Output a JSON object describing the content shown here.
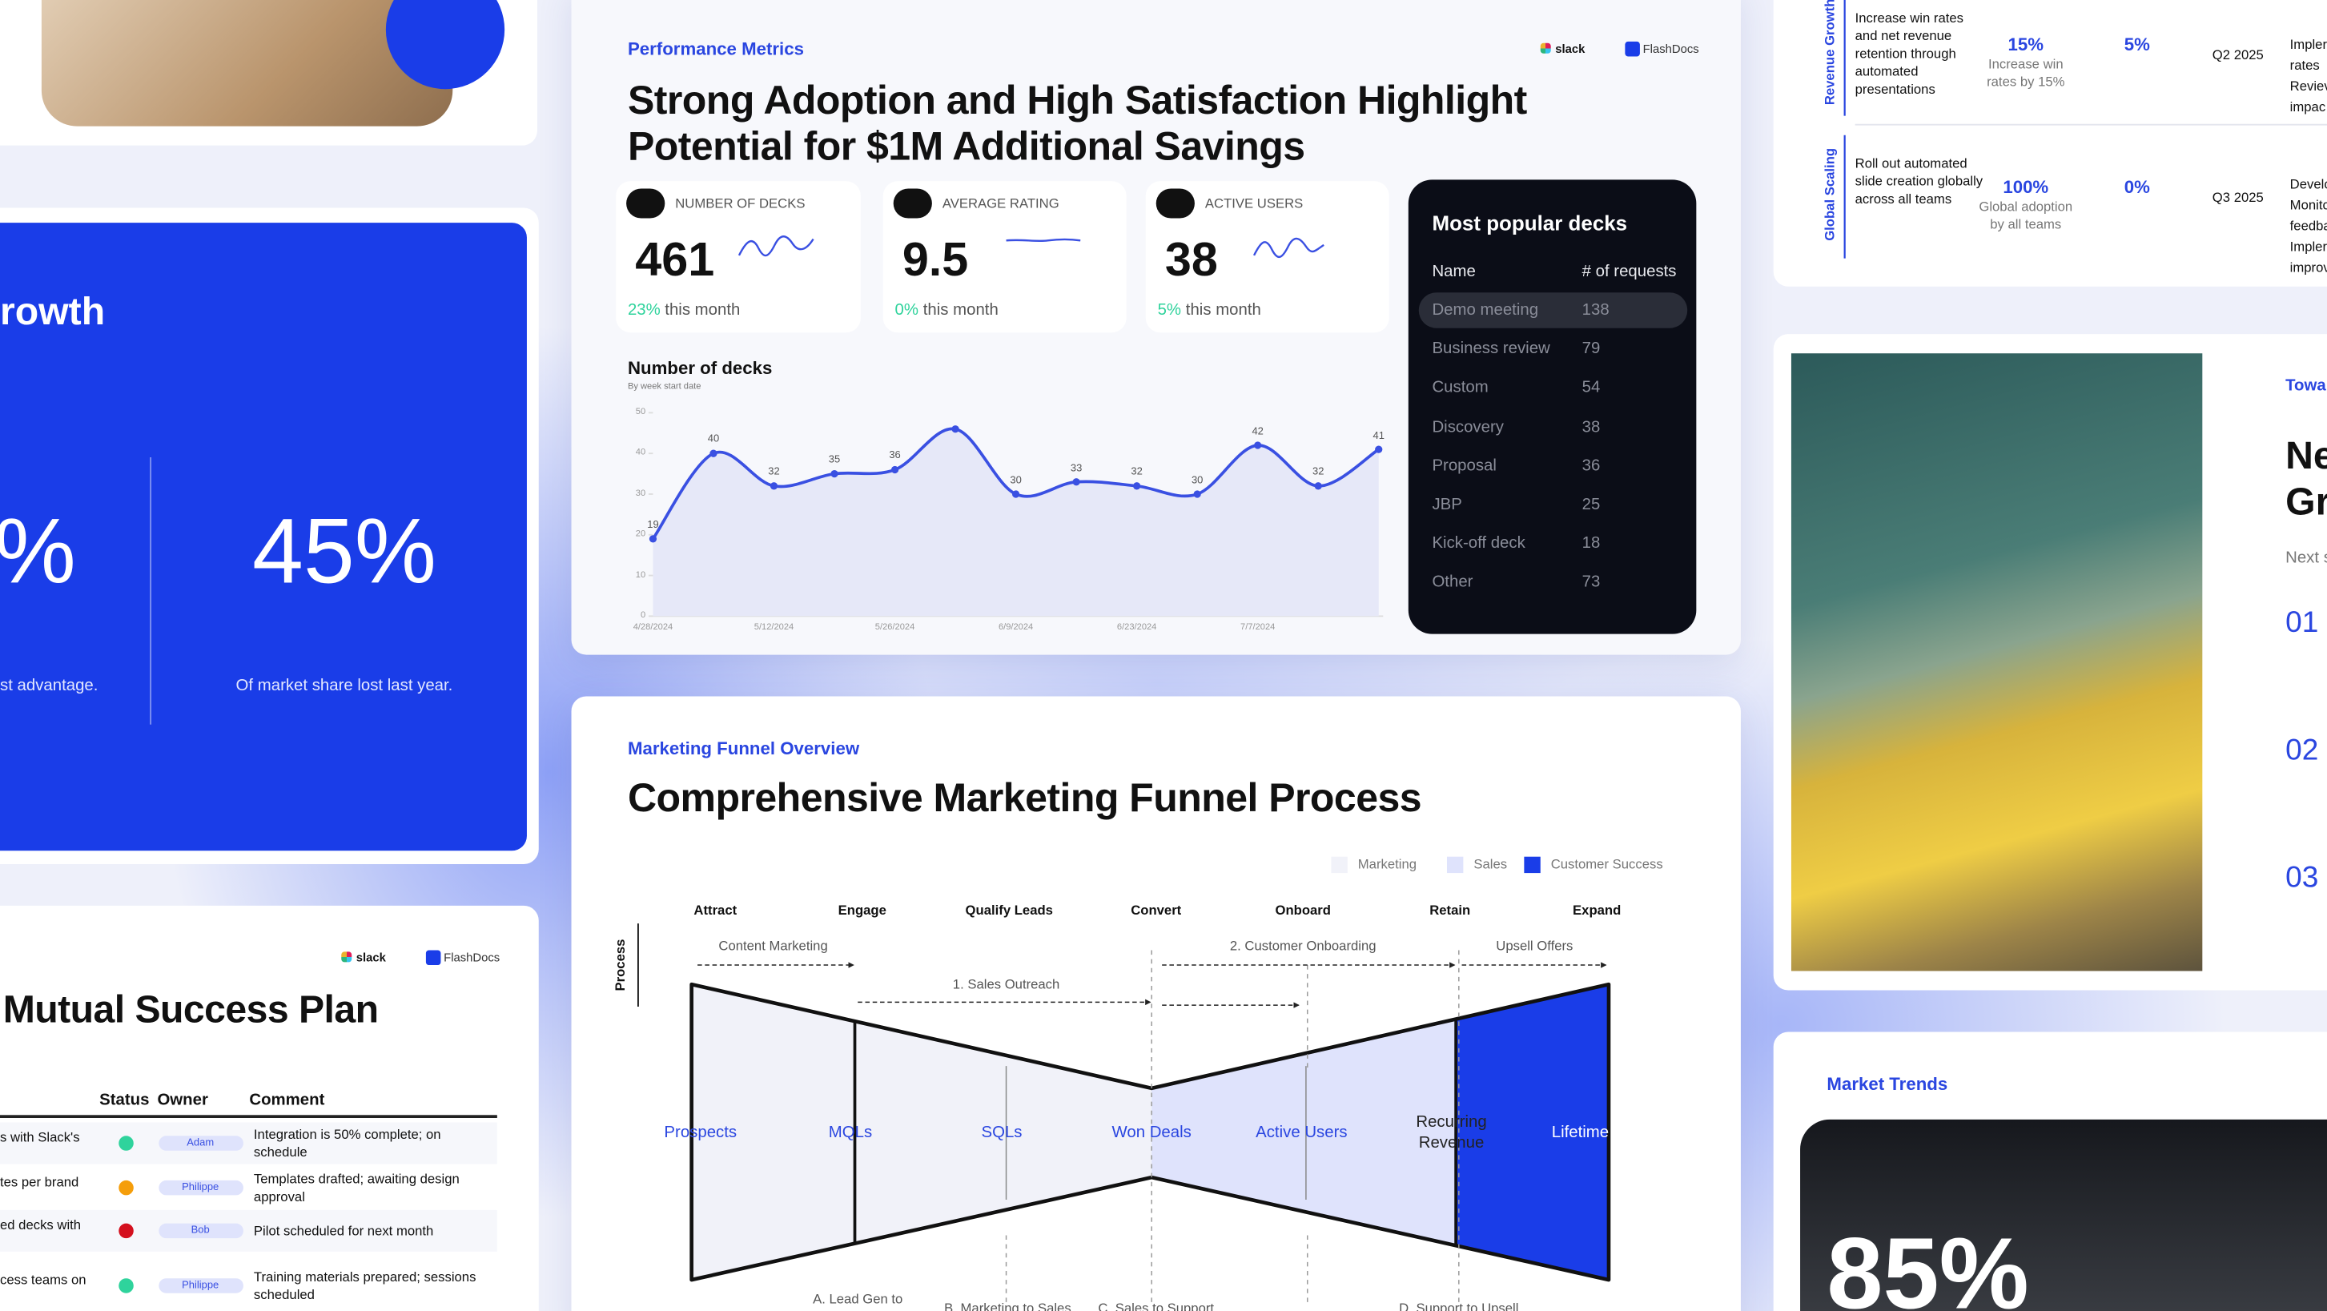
{
  "growth_card": {
    "title": "rowth",
    "stat_left": "%",
    "stat_right": "45%",
    "caption_left": "st advantage.",
    "caption_right": "Of market share lost last year."
  },
  "success_plan": {
    "logos": [
      "slack",
      "FlashDocs"
    ],
    "title": "Mutual Success Plan",
    "columns": [
      "Status",
      "Owner",
      "Comment"
    ],
    "rows": [
      {
        "task": "s with Slack's",
        "status_color": "#2fd39c",
        "owner": "Adam",
        "comment": "Integration is 50% complete; on schedule"
      },
      {
        "task": "tes per brand",
        "status_color": "#f59e0b",
        "owner": "Philippe",
        "comment": "Templates drafted; awaiting design approval"
      },
      {
        "task": "ed decks with",
        "status_color": "#d4101e",
        "owner": "Bob",
        "comment": "Pilot scheduled for next month"
      },
      {
        "task": "cess teams on",
        "status_color": "#2fd39c",
        "owner": "Philippe",
        "comment": "Training materials prepared; sessions scheduled"
      }
    ]
  },
  "performance": {
    "eyebrow": "Performance Metrics",
    "logos": [
      "slack",
      "FlashDocs"
    ],
    "title": [
      "Strong Adoption and High Satisfaction Highlight",
      "Potential for $1M Additional Savings"
    ],
    "kpis": [
      {
        "label": "NUMBER OF DECKS",
        "value": 461,
        "change": "23%",
        "period": "this month"
      },
      {
        "label": "AVERAGE RATING",
        "value": 9.5,
        "change": "0%",
        "period": "this month"
      },
      {
        "label": "ACTIVE USERS",
        "value": 38,
        "change": "5%",
        "period": "this month"
      }
    ],
    "popular": {
      "title": "Most popular decks",
      "columns": [
        "Name",
        "# of requests"
      ],
      "rows": [
        [
          "Demo meeting",
          138
        ],
        [
          "Business review",
          79
        ],
        [
          "Custom",
          54
        ],
        [
          "Discovery",
          38
        ],
        [
          "Proposal",
          36
        ],
        [
          "JBP",
          25
        ],
        [
          "Kick-off deck",
          18
        ],
        [
          "Other",
          73
        ]
      ]
    },
    "chart": {
      "type": "line",
      "title": "Number of decks",
      "subtitle": "By week start date",
      "x": [
        "4/28/2024",
        null,
        "5/12/2024",
        null,
        "5/26/2024",
        null,
        "6/9/2024",
        null,
        "6/23/2024",
        null,
        "7/7/2024",
        null,
        null
      ],
      "values": [
        19,
        40,
        32,
        35,
        36,
        46,
        30,
        33,
        32,
        30,
        42,
        32,
        41
      ],
      "value_labels": [
        "19",
        "40",
        "32",
        "35",
        "36",
        null,
        "30",
        "33",
        "32",
        "30",
        "42",
        "32",
        "41"
      ],
      "ylim": [
        0,
        50
      ],
      "yticks": [
        0,
        10,
        20,
        30,
        40,
        50
      ],
      "color": "#3a50e2"
    }
  },
  "funnel": {
    "eyebrow": "Marketing Funnel Overview",
    "title": "Comprehensive Marketing Funnel Process",
    "legend": [
      {
        "name": "Marketing",
        "color": "#f1f2f9"
      },
      {
        "name": "Sales",
        "color": "#dfe3fc"
      },
      {
        "name": "Customer Success",
        "color": "#1a3de8"
      }
    ],
    "stages": [
      "Attract",
      "Engage",
      "Qualify Leads",
      "Convert",
      "Onboard",
      "Retain",
      "Expand"
    ],
    "axis_label": "Process",
    "segments": [
      "Prospects",
      "MQLs",
      "SQLs",
      "Won Deals",
      "Active Users",
      "Recurring Revenue",
      "Lifetime Value"
    ],
    "flows": [
      "Content Marketing",
      "1. Sales Outreach",
      "2. Customer Onboarding",
      "Upsell Offers"
    ],
    "handoffs": [
      "A. Lead Gen to",
      "B. Marketing to Sales",
      "C. Sales to Support",
      "D. Support to Upsell"
    ]
  },
  "roadmap": {
    "groups": [
      {
        "name": "Revenue Growth",
        "objective": "Increase win rates and net revenue retention through automated presentations",
        "target": "15%",
        "target_note": "Increase win rates by 15%",
        "current": "5%",
        "quarter": "Q2 2025",
        "actions": [
          "Impler",
          "rates",
          "Reviev",
          "impac"
        ]
      },
      {
        "name": "Global Scaling",
        "objective": "Roll out automated slide creation globally across all teams",
        "target": "100%",
        "target_note": "Global adoption by all teams",
        "current": "0%",
        "quarter": "Q3 2025",
        "actions": [
          "Develo",
          "Monito",
          "feedba",
          "Impler",
          "improv"
        ]
      }
    ]
  },
  "growth_plan": {
    "eyebrow": "Towa",
    "title": [
      "Ne",
      "Gr"
    ],
    "subtitle": "Next s",
    "steps": [
      "01",
      "02",
      "03"
    ]
  },
  "market": {
    "eyebrow": "Market Trends",
    "stat": "85%"
  }
}
